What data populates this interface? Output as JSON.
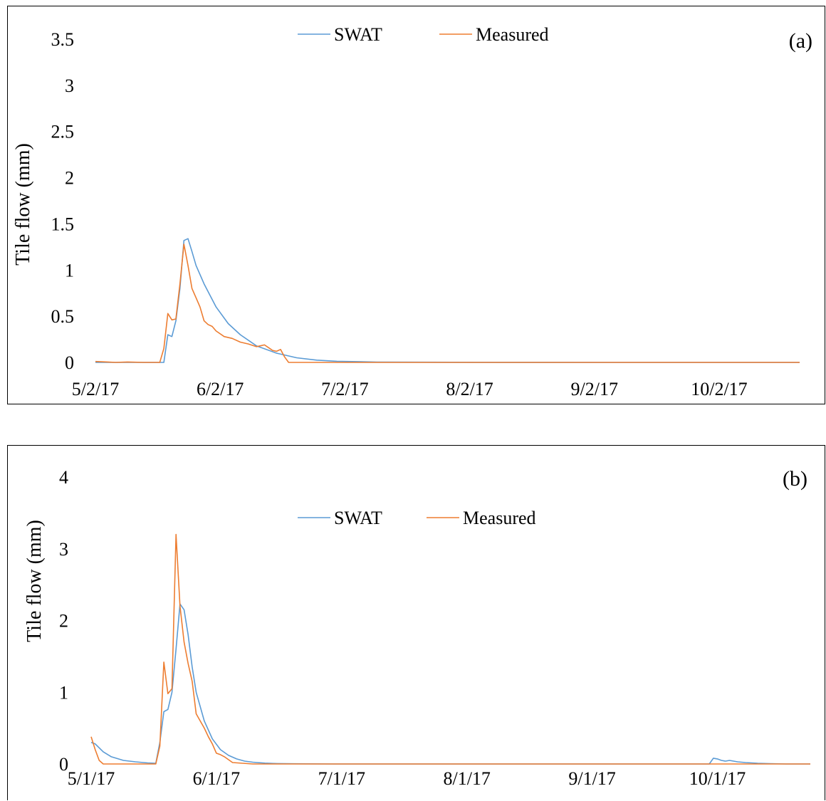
{
  "chart_data": [
    {
      "type": "line",
      "panel_label": "(a)",
      "ylabel": "Tile flow (mm)",
      "xlabel": "",
      "ylim": [
        0,
        3.5
      ],
      "yticks": [
        "0",
        "0.5",
        "1",
        "1.5",
        "2",
        "2.5",
        "3",
        "3.5"
      ],
      "xticks": [
        "5/2/17",
        "6/2/17",
        "7/2/17",
        "8/2/17",
        "9/2/17",
        "10/2/17"
      ],
      "xrange_days": [
        0,
        175
      ],
      "legend_position": "top-center",
      "grid": false,
      "series": [
        {
          "name": "SWAT",
          "color": "#5B9BD5",
          "x": [
            0,
            17,
            18,
            19,
            20,
            21,
            22,
            23,
            24,
            25,
            27,
            30,
            33,
            36,
            40,
            45,
            50,
            55,
            60,
            70,
            80,
            100,
            130,
            160,
            175
          ],
          "values": [
            0,
            0,
            0.3,
            0.28,
            0.45,
            0.8,
            1.32,
            1.34,
            1.2,
            1.05,
            0.85,
            0.6,
            0.42,
            0.3,
            0.18,
            0.1,
            0.05,
            0.025,
            0.012,
            0.004,
            0.002,
            0.001,
            0,
            0,
            0
          ]
        },
        {
          "name": "Measured",
          "color": "#ED7D31",
          "x": [
            0,
            3,
            5,
            8,
            12,
            16,
            17,
            18,
            19,
            20,
            21,
            22,
            23,
            24,
            25,
            26,
            27,
            28,
            29,
            30,
            32,
            34,
            36,
            38,
            40,
            41,
            42,
            43,
            44,
            45,
            46,
            47,
            48,
            60,
            80,
            120,
            150,
            175
          ],
          "values": [
            0.01,
            0.005,
            0,
            0.005,
            0,
            0,
            0.15,
            0.53,
            0.46,
            0.47,
            0.85,
            1.28,
            1.05,
            0.8,
            0.7,
            0.6,
            0.45,
            0.41,
            0.39,
            0.34,
            0.28,
            0.26,
            0.22,
            0.2,
            0.17,
            0.18,
            0.19,
            0.16,
            0.13,
            0.12,
            0.14,
            0.06,
            0,
            0,
            0,
            0,
            0,
            0
          ]
        }
      ]
    },
    {
      "type": "line",
      "panel_label": "(b)",
      "ylabel": "Tile flow (mm)",
      "xlabel": "",
      "ylim": [
        0,
        4
      ],
      "yticks": [
        "0",
        "1",
        "2",
        "3",
        "4"
      ],
      "xticks": [
        "5/1/17",
        "6/1/17",
        "7/1/17",
        "8/1/17",
        "9/1/17",
        "10/1/17"
      ],
      "xrange_days": [
        0,
        178
      ],
      "legend_position": "top-center",
      "grid": false,
      "series": [
        {
          "name": "SWAT",
          "color": "#5B9BD5",
          "x": [
            0,
            1,
            3,
            5,
            8,
            11,
            14,
            16,
            17,
            18,
            19,
            20,
            21,
            22,
            23,
            24,
            25,
            26,
            28,
            30,
            32,
            34,
            36,
            38,
            40,
            43,
            46,
            50,
            60,
            80,
            120,
            153,
            154,
            155,
            156,
            157,
            158,
            160,
            162,
            165,
            168,
            172,
            178
          ],
          "values": [
            0.3,
            0.28,
            0.17,
            0.1,
            0.05,
            0.03,
            0.015,
            0.01,
            0.3,
            0.73,
            0.76,
            1.0,
            1.6,
            2.23,
            2.15,
            1.8,
            1.35,
            1.0,
            0.6,
            0.35,
            0.2,
            0.12,
            0.07,
            0.04,
            0.025,
            0.012,
            0.006,
            0.003,
            0,
            0,
            0,
            0,
            0.08,
            0.07,
            0.05,
            0.04,
            0.05,
            0.03,
            0.02,
            0.01,
            0.005,
            0,
            0
          ]
        },
        {
          "name": "Measured",
          "color": "#ED7D31",
          "x": [
            0,
            1,
            2,
            3,
            5,
            8,
            11,
            14,
            16,
            17,
            18,
            19,
            20,
            21,
            22,
            23,
            24,
            25,
            26,
            27,
            28,
            29,
            30,
            31,
            32,
            33,
            35,
            40,
            50,
            80,
            120,
            178
          ],
          "values": [
            0.38,
            0.2,
            0.05,
            0,
            0,
            0,
            0,
            0,
            0,
            0.25,
            1.42,
            0.98,
            1.05,
            3.2,
            2.2,
            1.7,
            1.4,
            1.15,
            0.7,
            0.6,
            0.5,
            0.38,
            0.28,
            0.15,
            0.13,
            0.1,
            0.02,
            0,
            0,
            0,
            0,
            0
          ]
        }
      ]
    }
  ]
}
